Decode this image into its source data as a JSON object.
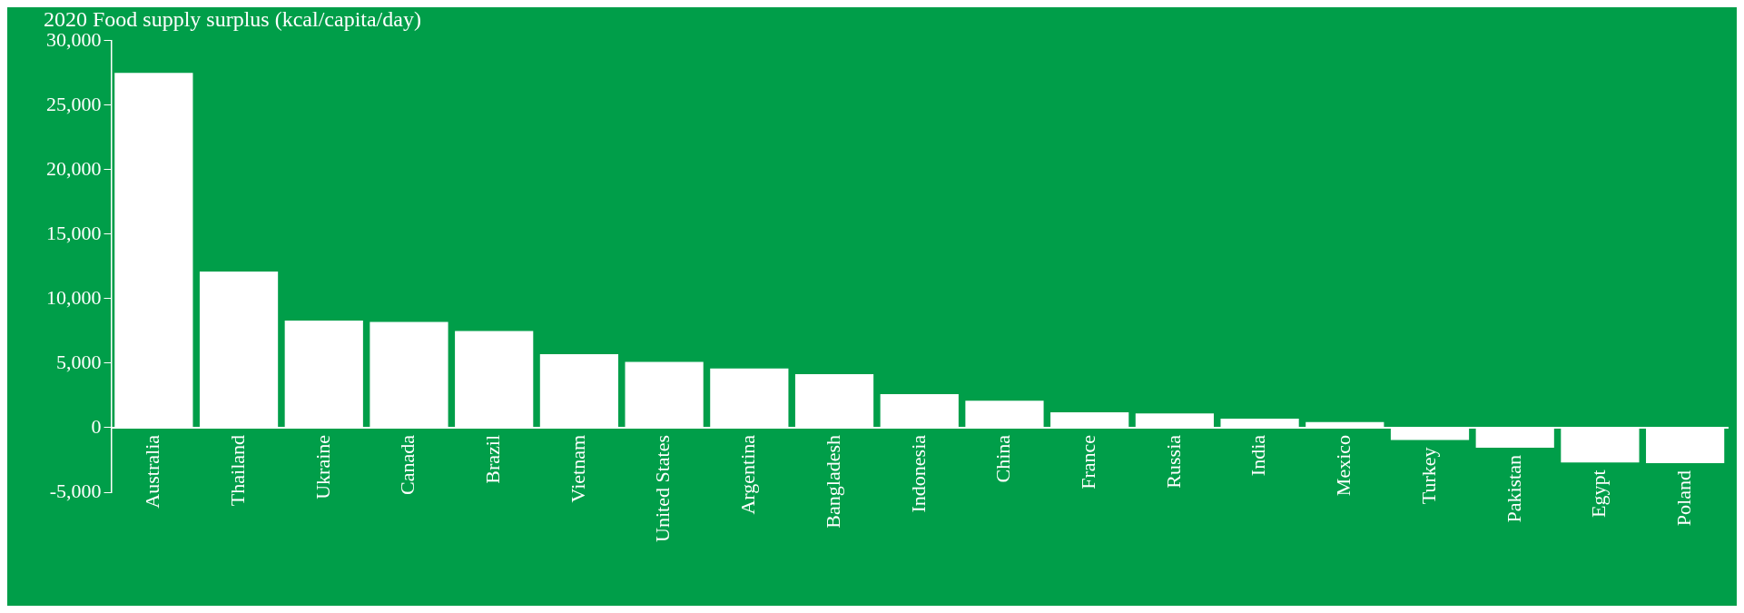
{
  "chart_data": {
    "type": "bar",
    "title": "2020 Food supply surplus (kcal/capita/day)",
    "categories": [
      "Australia",
      "Thailand",
      "Ukraine",
      "Canada",
      "Brazil",
      "Vietnam",
      "United States",
      "Argentina",
      "Bangladesh",
      "Indonesia",
      "China",
      "France",
      "Russia",
      "India",
      "Mexico",
      "Turkey",
      "Pakistan",
      "Egypt",
      "Poland"
    ],
    "values": [
      27500,
      12100,
      8300,
      8200,
      7500,
      5700,
      5100,
      4600,
      4150,
      2600,
      2100,
      1200,
      1100,
      700,
      430,
      -950,
      -1550,
      -2700,
      -2750
    ],
    "color": "#ffffff",
    "ylim": [
      -5000,
      30000
    ],
    "yticks": [
      {
        "value": -5000,
        "label": "-5,000"
      },
      0,
      {
        "value": 5000,
        "label": "5,000"
      },
      {
        "value": 10000,
        "label": "10,000"
      },
      {
        "value": 15000,
        "label": "15,000"
      },
      {
        "value": 20000,
        "label": "20,000"
      },
      {
        "value": 25000,
        "label": "25,000"
      },
      {
        "value": 30000,
        "label": "30,000"
      }
    ]
  }
}
